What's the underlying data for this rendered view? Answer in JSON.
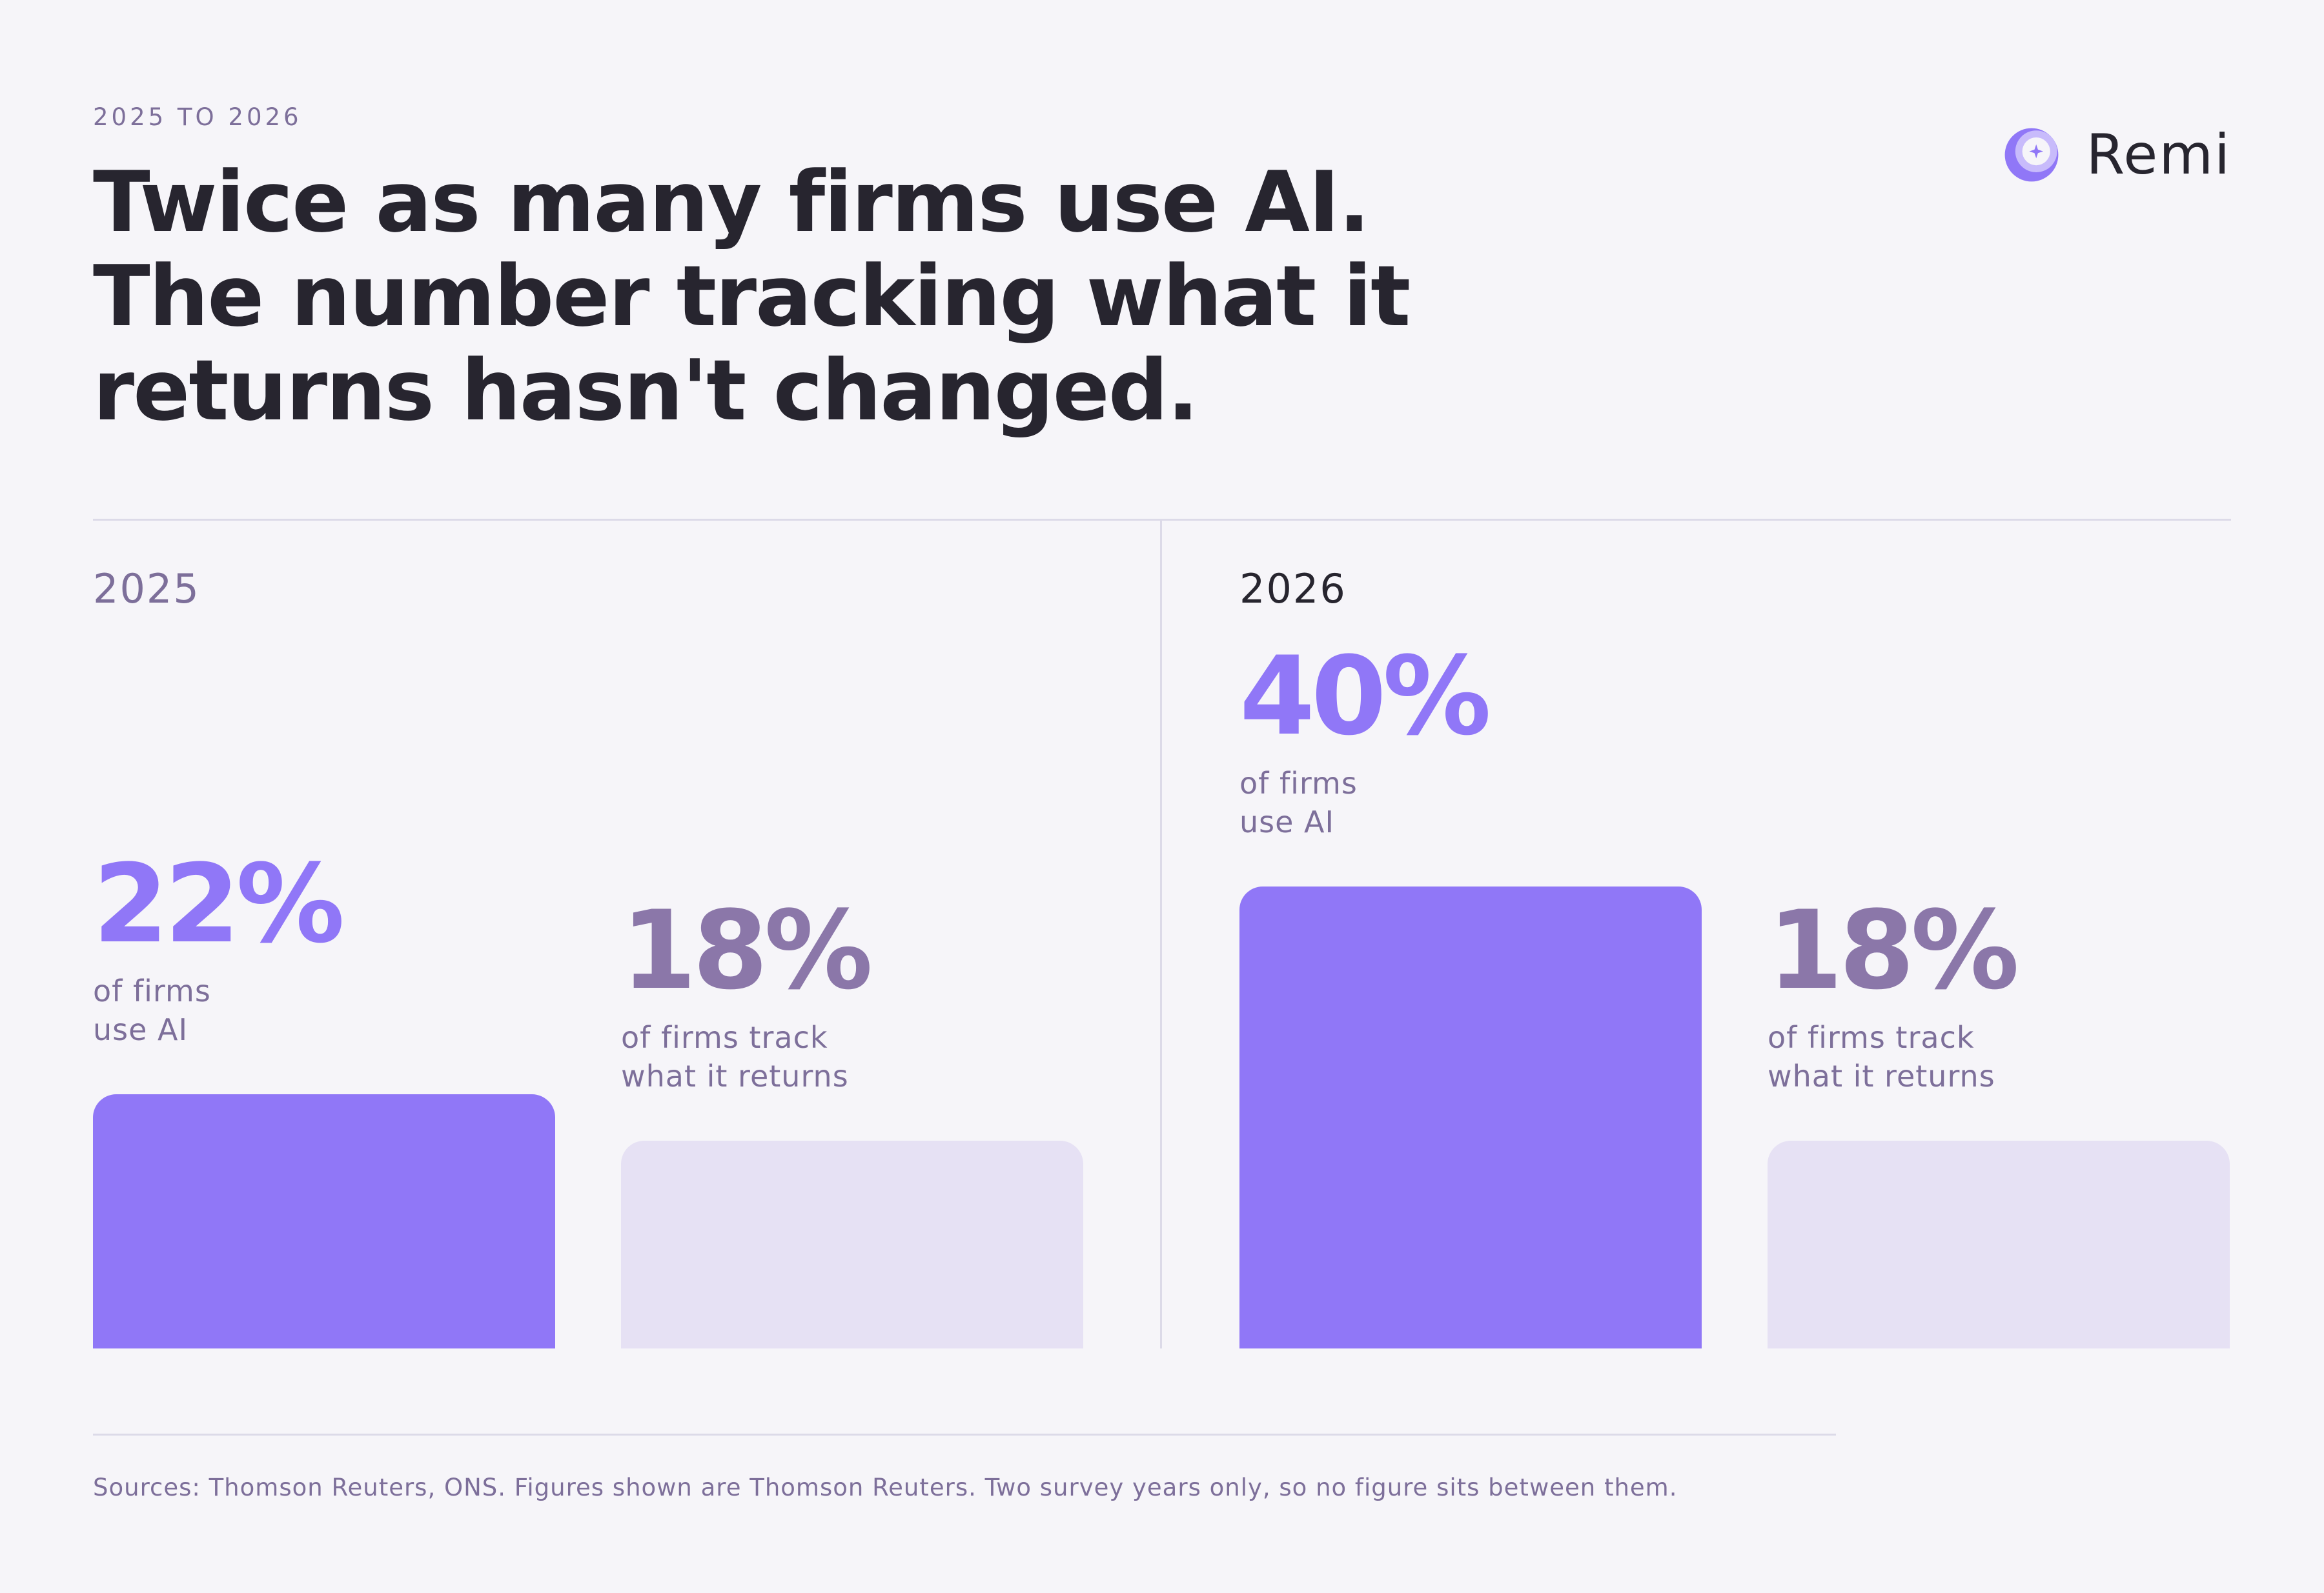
{
  "eyebrow": "2025 TO 2026",
  "title": "Twice as many firms use AI. The number tracking what it returns hasn't changed.",
  "brand": {
    "name": "Remi",
    "icon": "remi-logo-icon",
    "colors": {
      "primary": "#9077f7",
      "light": "#c8bbfb"
    }
  },
  "colors": {
    "ai": "#9077f7",
    "track": "#e6e1f4",
    "track_text": "#8b77a9",
    "text": "#27252f",
    "muted": "#7d6f9a",
    "background": "#f6f5f9"
  },
  "chart_data": {
    "type": "bar",
    "categories": [
      "2025",
      "2026"
    ],
    "series": [
      {
        "name": "of firms use AI",
        "values": [
          22,
          40
        ]
      },
      {
        "name": "of firms track what it returns",
        "values": [
          18,
          18
        ]
      }
    ],
    "value_labels": [
      [
        "22%",
        "18%"
      ],
      [
        "40%",
        "18%"
      ]
    ],
    "unit": "%",
    "ylim": [
      0,
      40
    ]
  },
  "panels": [
    {
      "year": "2025",
      "stats": [
        {
          "value": "22%",
          "label_line1": "of firms",
          "label_line2": "use AI"
        },
        {
          "value": "18%",
          "label_line1": "of firms track",
          "label_line2": "what it returns"
        }
      ]
    },
    {
      "year": "2026",
      "stats": [
        {
          "value": "40%",
          "label_line1": "of firms",
          "label_line2": "use AI"
        },
        {
          "value": "18%",
          "label_line1": "of firms track",
          "label_line2": "what it returns"
        }
      ]
    }
  ],
  "sources": "Sources: Thomson Reuters, ONS. Figures shown are Thomson Reuters. Two survey years only, so no figure sits between them."
}
